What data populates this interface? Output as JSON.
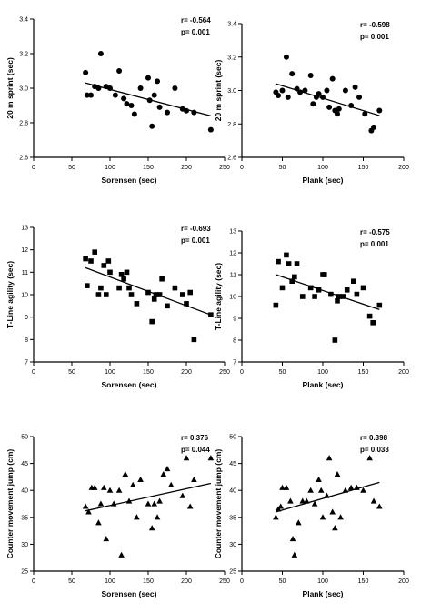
{
  "chart_data": [
    {
      "type": "scatter",
      "marker": "circle",
      "xlabel": "Sorensen (sec)",
      "ylabel": "20 m sprint (sec)",
      "xlim": [
        0,
        250
      ],
      "ylim": [
        2.6,
        3.4
      ],
      "xticks": [
        "0",
        "50",
        "100",
        "150",
        "200",
        "250"
      ],
      "yticks": [
        "2.6",
        "2.8",
        "3.0",
        "3.2",
        "3.4"
      ],
      "annotation_r": "r= -0.564",
      "annotation_p": "p= 0.001",
      "points": [
        [
          68,
          3.09
        ],
        [
          70,
          2.96
        ],
        [
          75,
          2.96
        ],
        [
          80,
          3.01
        ],
        [
          85,
          3.0
        ],
        [
          88,
          3.2
        ],
        [
          95,
          3.01
        ],
        [
          100,
          3.0
        ],
        [
          107,
          2.96
        ],
        [
          112,
          3.1
        ],
        [
          118,
          2.94
        ],
        [
          122,
          2.91
        ],
        [
          128,
          2.9
        ],
        [
          132,
          2.85
        ],
        [
          140,
          3.0
        ],
        [
          150,
          3.06
        ],
        [
          152,
          2.93
        ],
        [
          155,
          2.78
        ],
        [
          158,
          2.96
        ],
        [
          162,
          3.04
        ],
        [
          165,
          2.89
        ],
        [
          175,
          2.86
        ],
        [
          185,
          3.0
        ],
        [
          195,
          2.88
        ],
        [
          200,
          2.87
        ],
        [
          210,
          2.86
        ],
        [
          232,
          2.76
        ]
      ],
      "fit": [
        [
          68,
          3.03
        ],
        [
          232,
          2.84
        ]
      ]
    },
    {
      "type": "scatter",
      "marker": "circle",
      "xlabel": "Plank (sec)",
      "ylabel": "20 m sprint (sec)",
      "xlim": [
        0,
        200
      ],
      "ylim": [
        2.6,
        3.4
      ],
      "xticks": [
        "0",
        "50",
        "100",
        "150",
        "200"
      ],
      "yticks": [
        "2.6",
        "2.8",
        "3.0",
        "3.2",
        "3.4"
      ],
      "annotation_r": "r= -0.598",
      "annotation_p": "p= 0.001",
      "points": [
        [
          42,
          2.99
        ],
        [
          45,
          2.97
        ],
        [
          50,
          3.0
        ],
        [
          55,
          3.2
        ],
        [
          57,
          2.96
        ],
        [
          62,
          3.1
        ],
        [
          68,
          3.01
        ],
        [
          72,
          2.99
        ],
        [
          78,
          3.0
        ],
        [
          85,
          3.09
        ],
        [
          88,
          2.92
        ],
        [
          92,
          2.96
        ],
        [
          95,
          2.98
        ],
        [
          100,
          2.96
        ],
        [
          105,
          3.0
        ],
        [
          108,
          2.9
        ],
        [
          112,
          3.07
        ],
        [
          115,
          2.88
        ],
        [
          118,
          2.86
        ],
        [
          120,
          2.89
        ],
        [
          128,
          3.0
        ],
        [
          135,
          2.91
        ],
        [
          140,
          3.02
        ],
        [
          145,
          2.96
        ],
        [
          152,
          2.86
        ],
        [
          160,
          2.76
        ],
        [
          163,
          2.78
        ],
        [
          170,
          2.88
        ]
      ],
      "fit": [
        [
          42,
          3.04
        ],
        [
          170,
          2.85
        ]
      ]
    },
    {
      "type": "scatter",
      "marker": "square",
      "xlabel": "Sorensen (sec)",
      "ylabel": "T-Line agility (sec)",
      "xlim": [
        0,
        250
      ],
      "ylim": [
        7,
        13
      ],
      "xticks": [
        "0",
        "50",
        "100",
        "150",
        "200",
        "250"
      ],
      "yticks": [
        "7",
        "8",
        "9",
        "10",
        "11",
        "12",
        "13"
      ],
      "annotation_r": "r= -0.693",
      "annotation_p": "p= 0.001",
      "points": [
        [
          68,
          11.6
        ],
        [
          70,
          10.4
        ],
        [
          75,
          11.5
        ],
        [
          80,
          11.9
        ],
        [
          85,
          10.0
        ],
        [
          88,
          10.3
        ],
        [
          92,
          11.3
        ],
        [
          95,
          10.0
        ],
        [
          98,
          11.5
        ],
        [
          100,
          11.0
        ],
        [
          112,
          10.3
        ],
        [
          115,
          10.9
        ],
        [
          118,
          10.7
        ],
        [
          122,
          11.0
        ],
        [
          125,
          10.3
        ],
        [
          128,
          10.0
        ],
        [
          135,
          9.6
        ],
        [
          150,
          10.1
        ],
        [
          155,
          8.8
        ],
        [
          158,
          9.8
        ],
        [
          160,
          10.0
        ],
        [
          165,
          10.0
        ],
        [
          168,
          10.7
        ],
        [
          175,
          9.5
        ],
        [
          185,
          10.3
        ],
        [
          195,
          10.0
        ],
        [
          200,
          9.6
        ],
        [
          205,
          10.1
        ],
        [
          210,
          8.0
        ],
        [
          232,
          9.1
        ]
      ],
      "fit": [
        [
          68,
          11.2
        ],
        [
          232,
          9.1
        ]
      ]
    },
    {
      "type": "scatter",
      "marker": "square",
      "xlabel": "Plank (sec)",
      "ylabel": "T-Line agility (sec)",
      "xlim": [
        0,
        200
      ],
      "ylim": [
        7,
        13
      ],
      "xticks": [
        "0",
        "50",
        "100",
        "150",
        "200"
      ],
      "yticks": [
        "7",
        "8",
        "9",
        "10",
        "11",
        "12",
        "13"
      ],
      "annotation_r": "r= -0.575",
      "annotation_p": "p= 0.001",
      "points": [
        [
          42,
          9.6
        ],
        [
          45,
          11.6
        ],
        [
          50,
          10.4
        ],
        [
          55,
          11.9
        ],
        [
          58,
          11.5
        ],
        [
          62,
          10.7
        ],
        [
          65,
          10.9
        ],
        [
          68,
          11.5
        ],
        [
          75,
          10.0
        ],
        [
          85,
          10.4
        ],
        [
          90,
          10.0
        ],
        [
          95,
          10.3
        ],
        [
          100,
          11.0
        ],
        [
          102,
          11.0
        ],
        [
          110,
          10.1
        ],
        [
          115,
          8.0
        ],
        [
          118,
          9.8
        ],
        [
          120,
          10.0
        ],
        [
          125,
          10.0
        ],
        [
          130,
          10.3
        ],
        [
          138,
          10.7
        ],
        [
          142,
          10.1
        ],
        [
          150,
          10.4
        ],
        [
          158,
          9.1
        ],
        [
          162,
          8.8
        ],
        [
          170,
          9.6
        ]
      ],
      "fit": [
        [
          42,
          11.0
        ],
        [
          170,
          9.4
        ]
      ]
    },
    {
      "type": "scatter",
      "marker": "triangle",
      "xlabel": "Sorensen (sec)",
      "ylabel": "Counter movement jump (cm)",
      "xlim": [
        0,
        250
      ],
      "ylim": [
        25,
        50
      ],
      "xticks": [
        "0",
        "50",
        "100",
        "150",
        "200",
        "250"
      ],
      "yticks": [
        "25",
        "30",
        "35",
        "40",
        "45",
        "50"
      ],
      "annotation_r": "r= 0.376",
      "annotation_p": "p= 0.044",
      "points": [
        [
          68,
          37.0
        ],
        [
          72,
          36.0
        ],
        [
          76,
          40.5
        ],
        [
          80,
          40.5
        ],
        [
          85,
          34.0
        ],
        [
          88,
          37.5
        ],
        [
          92,
          40.5
        ],
        [
          95,
          31.0
        ],
        [
          100,
          40.0
        ],
        [
          105,
          37.5
        ],
        [
          112,
          40.0
        ],
        [
          115,
          28.0
        ],
        [
          120,
          43.0
        ],
        [
          125,
          38.0
        ],
        [
          130,
          41.0
        ],
        [
          135,
          35.0
        ],
        [
          140,
          42.0
        ],
        [
          150,
          37.5
        ],
        [
          155,
          33.0
        ],
        [
          158,
          37.5
        ],
        [
          162,
          35.0
        ],
        [
          165,
          38.0
        ],
        [
          170,
          43.0
        ],
        [
          175,
          44.0
        ],
        [
          180,
          41.0
        ],
        [
          195,
          39.0
        ],
        [
          200,
          46.0
        ],
        [
          205,
          37.0
        ],
        [
          210,
          42.0
        ],
        [
          232,
          46.0
        ]
      ],
      "fit": [
        [
          68,
          36.2
        ],
        [
          232,
          41.3
        ]
      ]
    },
    {
      "type": "scatter",
      "marker": "triangle",
      "xlabel": "Plank (sec)",
      "ylabel": "Counter movement jump (cm)",
      "xlim": [
        0,
        200
      ],
      "ylim": [
        25,
        50
      ],
      "xticks": [
        "0",
        "50",
        "100",
        "150",
        "200"
      ],
      "yticks": [
        "25",
        "30",
        "35",
        "40",
        "45",
        "50"
      ],
      "annotation_r": "r= 0.398",
      "annotation_p": "p= 0.033",
      "points": [
        [
          42,
          35.0
        ],
        [
          45,
          36.5
        ],
        [
          48,
          37.0
        ],
        [
          50,
          40.5
        ],
        [
          55,
          40.5
        ],
        [
          60,
          38.0
        ],
        [
          63,
          31.0
        ],
        [
          65,
          28.0
        ],
        [
          70,
          34.0
        ],
        [
          75,
          38.0
        ],
        [
          80,
          38.0
        ],
        [
          85,
          40.0
        ],
        [
          90,
          37.5
        ],
        [
          95,
          42.0
        ],
        [
          98,
          40.0
        ],
        [
          100,
          35.0
        ],
        [
          105,
          39.0
        ],
        [
          108,
          46.0
        ],
        [
          112,
          36.0
        ],
        [
          115,
          33.0
        ],
        [
          118,
          43.0
        ],
        [
          122,
          35.0
        ],
        [
          128,
          40.0
        ],
        [
          135,
          40.5
        ],
        [
          142,
          40.5
        ],
        [
          150,
          40.0
        ],
        [
          158,
          46.0
        ],
        [
          163,
          38.0
        ],
        [
          170,
          37.0
        ]
      ],
      "fit": [
        [
          42,
          36.0
        ],
        [
          170,
          41.5
        ]
      ]
    }
  ]
}
